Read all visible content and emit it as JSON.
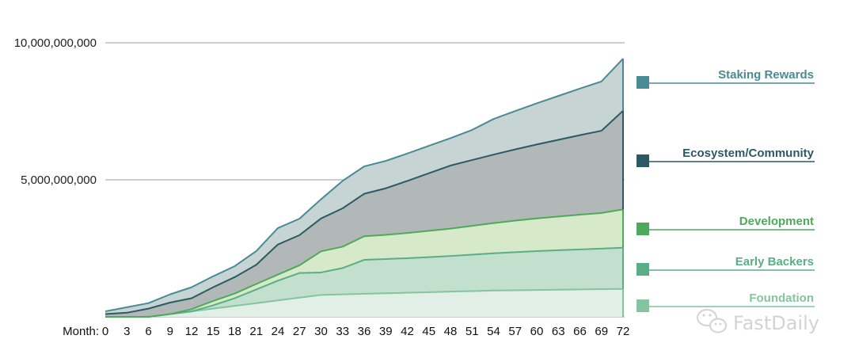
{
  "chart_data": {
    "type": "area",
    "stacked": true,
    "x_prefix": "Month:",
    "x": [
      0,
      3,
      6,
      9,
      12,
      15,
      18,
      21,
      24,
      27,
      30,
      33,
      36,
      39,
      42,
      45,
      48,
      51,
      54,
      57,
      60,
      63,
      66,
      69,
      72
    ],
    "y_ticks": [
      {
        "value": 10000000000,
        "label": "10,000,000,000"
      },
      {
        "value": 5000000000,
        "label": "5,000,000,000"
      }
    ],
    "ylim": [
      0,
      10000000000
    ],
    "series": [
      {
        "name": "Foundation",
        "color": "#86c4a0",
        "fill": "#e2efe6",
        "values": [
          0,
          0,
          0,
          100000000,
          200000000,
          300000000,
          400000000,
          500000000,
          600000000,
          700000000,
          800000000,
          820000000,
          840000000,
          860000000,
          880000000,
          900000000,
          920000000,
          940000000,
          960000000,
          970000000,
          980000000,
          990000000,
          1000000000,
          1010000000,
          1020000000
        ]
      },
      {
        "name": "Early Backers",
        "color": "#5aae86",
        "fill": "#c2e0cd",
        "values": [
          0,
          0,
          0,
          0,
          0,
          120000000,
          280000000,
          500000000,
          720000000,
          900000000,
          820000000,
          960000000,
          1240000000,
          1250000000,
          1260000000,
          1280000000,
          1300000000,
          1330000000,
          1360000000,
          1390000000,
          1420000000,
          1440000000,
          1460000000,
          1480000000,
          1500000000
        ]
      },
      {
        "name": "Development",
        "color": "#4caa5a",
        "fill": "#d6e9c8",
        "values": [
          0,
          0,
          0,
          0,
          80000000,
          160000000,
          170000000,
          200000000,
          220000000,
          280000000,
          770000000,
          780000000,
          860000000,
          880000000,
          920000000,
          960000000,
          1000000000,
          1050000000,
          1100000000,
          1150000000,
          1190000000,
          1230000000,
          1270000000,
          1300000000,
          1400000000
        ]
      },
      {
        "name": "Ecosystem/Community",
        "color": "#2c5a64",
        "fill": "#b2b8b8",
        "values": [
          100000000,
          150000000,
          300000000,
          420000000,
          400000000,
          500000000,
          600000000,
          700000000,
          1100000000,
          1100000000,
          1200000000,
          1400000000,
          1550000000,
          1700000000,
          1900000000,
          2100000000,
          2300000000,
          2400000000,
          2500000000,
          2600000000,
          2700000000,
          2800000000,
          2900000000,
          3000000000,
          3600000000
        ]
      },
      {
        "name": "Staking Rewards",
        "color": "#4a8a94",
        "fill": "#c6d4d4",
        "values": [
          100000000,
          200000000,
          200000000,
          300000000,
          400000000,
          400000000,
          400000000,
          500000000,
          600000000,
          600000000,
          700000000,
          1000000000,
          1000000000,
          1000000000,
          1000000000,
          1000000000,
          1000000000,
          1100000000,
          1300000000,
          1400000000,
          1500000000,
          1600000000,
          1700000000,
          1800000000,
          1900000000
        ]
      }
    ],
    "legend_order": [
      "Staking Rewards",
      "Ecosystem/Community",
      "Development",
      "Early Backers",
      "Foundation"
    ],
    "legend_placement": "right",
    "grid": "horizontal"
  },
  "watermark": {
    "text": "FastDaily",
    "icon": "wechat-logo-icon"
  }
}
